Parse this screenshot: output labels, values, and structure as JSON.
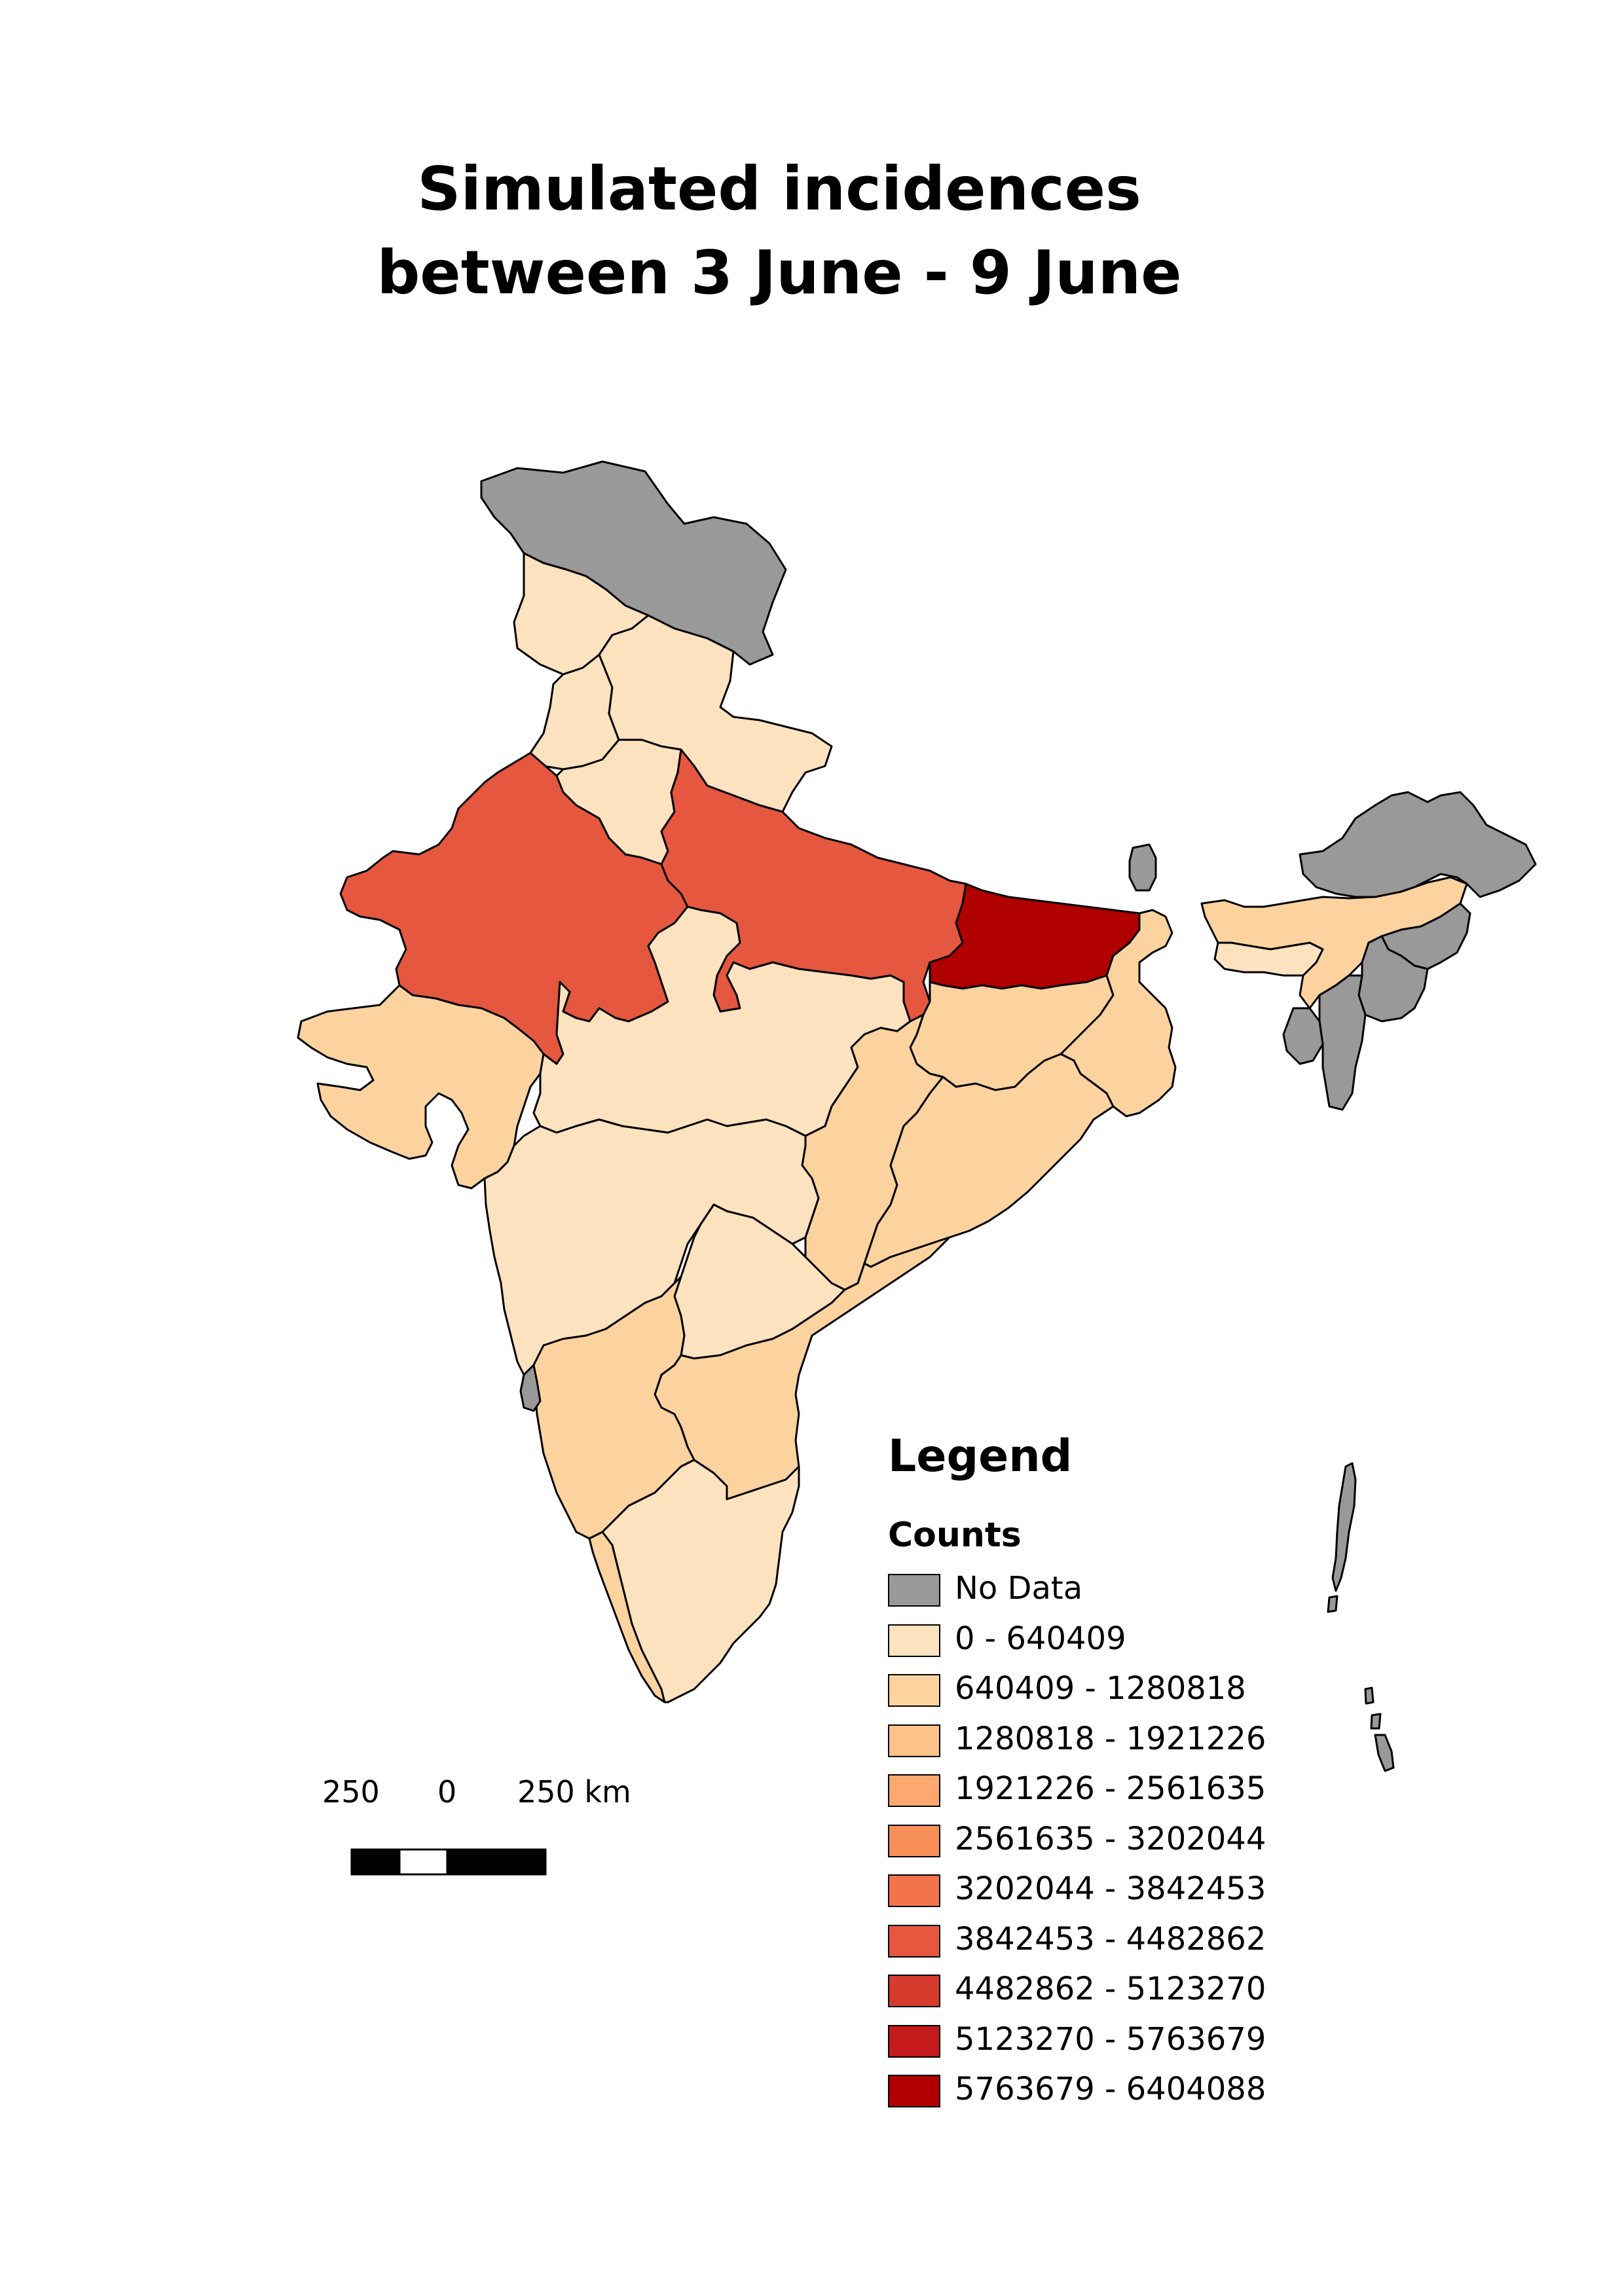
{
  "title": {
    "line1": "Simulated incidences",
    "line2": "between 3 June - 9 June"
  },
  "legend": {
    "title": "Legend",
    "subtitle": "Counts",
    "items": [
      {
        "label": "No Data",
        "color": "#999999"
      },
      {
        "label": "0 - 640409",
        "color": "#fde2bf"
      },
      {
        "label": "640409 - 1280818",
        "color": "#fcd39f"
      },
      {
        "label": "1280818 - 1921226",
        "color": "#fcc287"
      },
      {
        "label": "1921226 - 2561635",
        "color": "#fca86f"
      },
      {
        "label": "2561635 - 3202044",
        "color": "#f98f58"
      },
      {
        "label": "3202044 - 3842453",
        "color": "#f2734c"
      },
      {
        "label": "3842453 - 4482862",
        "color": "#e5573f"
      },
      {
        "label": "4482862 - 5123270",
        "color": "#d63b2d"
      },
      {
        "label": "5123270 - 5763679",
        "color": "#c41a1c"
      },
      {
        "label": "5763679 - 6404088",
        "color": "#b00000"
      }
    ]
  },
  "scale_bar": {
    "labels": [
      "250",
      "0",
      "250 km"
    ]
  },
  "regions": [
    {
      "name": "Jammu and Kashmir",
      "class": "No Data"
    },
    {
      "name": "Himachal Pradesh",
      "class": "0 - 640409"
    },
    {
      "name": "Punjab",
      "class": "0 - 640409"
    },
    {
      "name": "Uttarakhand",
      "class": "0 - 640409"
    },
    {
      "name": "Haryana",
      "class": "0 - 640409"
    },
    {
      "name": "Rajasthan",
      "class": "3842453 - 4482862"
    },
    {
      "name": "Uttar Pradesh",
      "class": "3842453 - 4482862"
    },
    {
      "name": "Bihar",
      "class": "5763679 - 6404088"
    },
    {
      "name": "Sikkim",
      "class": "No Data"
    },
    {
      "name": "Arunachal Pradesh",
      "class": "No Data"
    },
    {
      "name": "Assam",
      "class": "640409 - 1280818"
    },
    {
      "name": "Meghalaya",
      "class": "0 - 640409"
    },
    {
      "name": "Nagaland",
      "class": "No Data"
    },
    {
      "name": "Manipur",
      "class": "No Data"
    },
    {
      "name": "Mizoram",
      "class": "No Data"
    },
    {
      "name": "Tripura",
      "class": "No Data"
    },
    {
      "name": "Gujarat",
      "class": "640409 - 1280818"
    },
    {
      "name": "Madhya Pradesh",
      "class": "0 - 640409"
    },
    {
      "name": "Jharkhand",
      "class": "640409 - 1280818"
    },
    {
      "name": "West Bengal",
      "class": "640409 - 1280818"
    },
    {
      "name": "Chhattisgarh",
      "class": "640409 - 1280818"
    },
    {
      "name": "Odisha",
      "class": "640409 - 1280818"
    },
    {
      "name": "Maharashtra",
      "class": "0 - 640409"
    },
    {
      "name": "Telangana",
      "class": "0 - 640409"
    },
    {
      "name": "Andhra Pradesh",
      "class": "640409 - 1280818"
    },
    {
      "name": "Karnataka",
      "class": "640409 - 1280818"
    },
    {
      "name": "Goa",
      "class": "No Data"
    },
    {
      "name": "Tamil Nadu",
      "class": "0 - 640409"
    },
    {
      "name": "Kerala",
      "class": "640409 - 1280818"
    },
    {
      "name": "Andaman and Nicobar Islands",
      "class": "No Data"
    }
  ]
}
